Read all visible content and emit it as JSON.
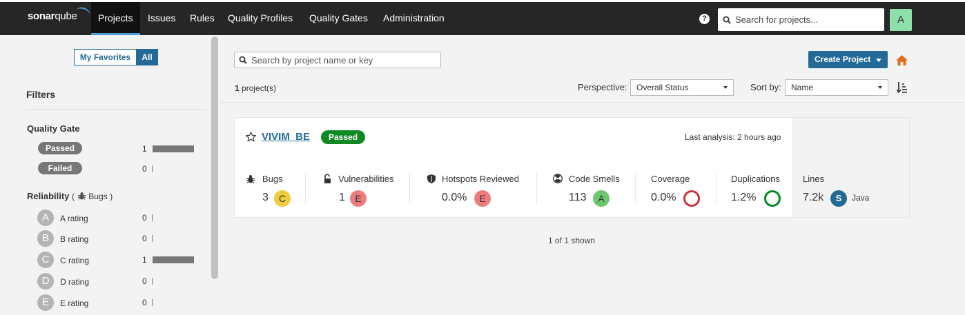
{
  "header": {
    "logo_bold": "sonar",
    "logo_thin": "qube",
    "nav": [
      "Projects",
      "Issues",
      "Rules",
      "Quality Profiles",
      "Quality Gates",
      "Administration"
    ],
    "help": "?",
    "search_placeholder": "Search for projects...",
    "avatar": "A"
  },
  "sidebar": {
    "toggle_favorites": "My Favorites",
    "toggle_all": "All",
    "filters_title": "Filters",
    "quality_gate": {
      "title": "Quality Gate",
      "items": [
        {
          "label": "Passed",
          "count": "1",
          "fraction": 1
        },
        {
          "label": "Failed",
          "count": "0",
          "fraction": 0
        }
      ]
    },
    "reliability": {
      "title": "Reliability",
      "subtitle_open": "(",
      "subtitle_text": "Bugs",
      "subtitle_close": ")",
      "items": [
        {
          "letter": "A",
          "label": "A rating",
          "count": "0",
          "fraction": 0
        },
        {
          "letter": "B",
          "label": "B rating",
          "count": "0",
          "fraction": 0
        },
        {
          "letter": "C",
          "label": "C rating",
          "count": "1",
          "fraction": 1
        },
        {
          "letter": "D",
          "label": "D rating",
          "count": "0",
          "fraction": 0
        },
        {
          "letter": "E",
          "label": "E rating",
          "count": "0",
          "fraction": 0
        }
      ]
    }
  },
  "main": {
    "search_placeholder": "Search by project name or key",
    "create_button": "Create Project",
    "project_count_num": "1",
    "project_count_suffix": "project(s)",
    "perspective_label": "Perspective:",
    "perspective_value": "Overall Status",
    "sort_label": "Sort by:",
    "sort_value": "Name",
    "shown": "1 of 1 shown"
  },
  "project": {
    "name": "VIVIM_BE",
    "quality_gate": "Passed",
    "last_analysis": "Last analysis: 2 hours ago",
    "metrics": {
      "bugs_label": "Bugs",
      "bugs_value": "3",
      "bugs_rating": "C",
      "vuln_label": "Vulnerabilities",
      "vuln_value": "1",
      "vuln_rating": "E",
      "hotspots_label": "Hotspots Reviewed",
      "hotspots_value": "0.0%",
      "hotspots_rating": "E",
      "smells_label": "Code Smells",
      "smells_value": "113",
      "smells_rating": "A",
      "coverage_label": "Coverage",
      "coverage_value": "0.0%",
      "dup_label": "Duplications",
      "dup_value": "1.2%",
      "lines_label": "Lines",
      "lines_value": "7.2k",
      "lang_badge": "S",
      "language": "Java"
    }
  },
  "colors": {
    "rating_A": "#6ec86b",
    "rating_C": "#efcb3d",
    "rating_E": "#ed7d7d",
    "passed": "#0f8a23",
    "coverage_ring": "#d02f3a",
    "duplication_ring": "#008a25"
  }
}
